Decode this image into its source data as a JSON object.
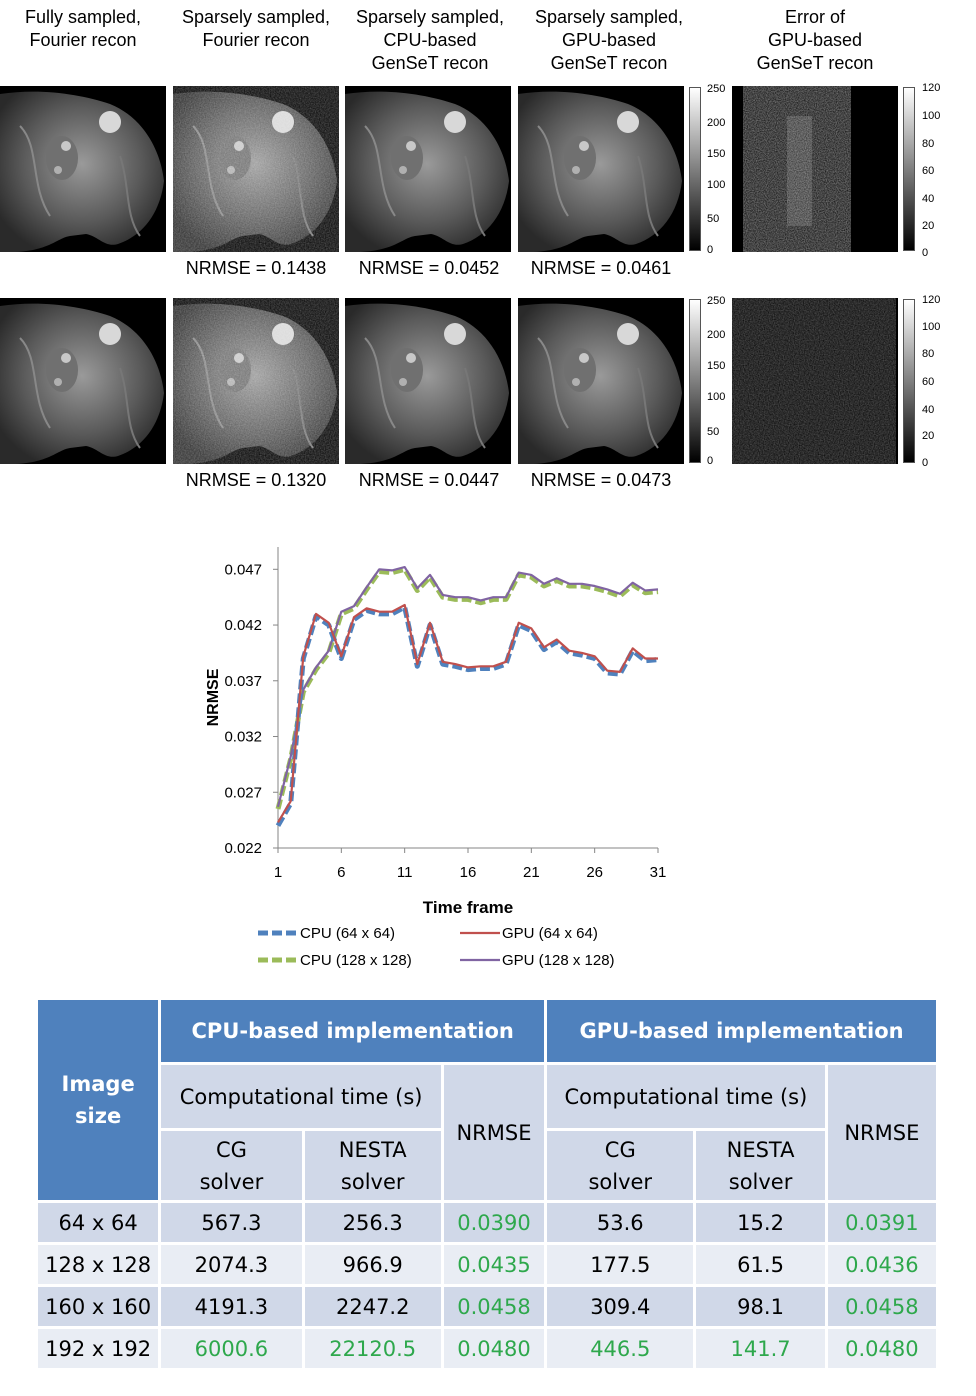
{
  "figure": {
    "column_headers": [
      "Fully sampled,\nFourier recon",
      "Sparsely sampled,\nFourier recon",
      "Sparsely sampled,\nCPU-based\nGenSeT recon",
      "Sparsely sampled,\nGPU-based\nGenSeT recon",
      "Error of\nGPU-based\nGenSeT recon"
    ],
    "row1_nrmse": [
      "NRMSE = 0.1438",
      "NRMSE = 0.0452",
      "NRMSE = 0.0461"
    ],
    "row2_nrmse": [
      "NRMSE = 0.1320",
      "NRMSE = 0.0447",
      "NRMSE = 0.0473"
    ],
    "colorbar_image_ticks": [
      "250",
      "200",
      "150",
      "100",
      "50",
      "0"
    ],
    "colorbar_error_ticks": [
      "120",
      "100",
      "80",
      "60",
      "40",
      "20",
      "0"
    ]
  },
  "chart_data": {
    "type": "line",
    "title": "",
    "xlabel": "Time frame",
    "ylabel": "NRMSE",
    "xlim": [
      1,
      31
    ],
    "ylim": [
      0.022,
      0.049
    ],
    "x_ticks": [
      "1",
      "6",
      "11",
      "16",
      "21",
      "26",
      "31"
    ],
    "y_ticks": [
      "0.022",
      "0.027",
      "0.032",
      "0.037",
      "0.042",
      "0.047"
    ],
    "legend_position": "bottom",
    "grid": false,
    "x": [
      1,
      2,
      3,
      4,
      5,
      6,
      7,
      8,
      9,
      10,
      11,
      12,
      13,
      14,
      15,
      16,
      17,
      18,
      19,
      20,
      21,
      22,
      23,
      24,
      25,
      26,
      27,
      28,
      29,
      30,
      31
    ],
    "series": [
      {
        "name": "CPU (64 x 64)",
        "color": "#4f81bd",
        "style": "dashed",
        "values": [
          0.024,
          0.026,
          0.039,
          0.0428,
          0.042,
          0.039,
          0.0425,
          0.0433,
          0.043,
          0.043,
          0.0436,
          0.0383,
          0.042,
          0.0385,
          0.0383,
          0.038,
          0.0381,
          0.0381,
          0.0385,
          0.042,
          0.0415,
          0.0398,
          0.0405,
          0.0395,
          0.0393,
          0.039,
          0.0377,
          0.0376,
          0.0397,
          0.0388,
          0.0389
        ]
      },
      {
        "name": "GPU (64 x 64)",
        "color": "#c0504d",
        "style": "solid",
        "values": [
          0.0243,
          0.0262,
          0.0392,
          0.043,
          0.0422,
          0.0392,
          0.0427,
          0.0435,
          0.0432,
          0.0432,
          0.0438,
          0.0385,
          0.0422,
          0.0387,
          0.0385,
          0.0382,
          0.0383,
          0.0383,
          0.0387,
          0.0422,
          0.0417,
          0.04,
          0.0407,
          0.0397,
          0.0395,
          0.0392,
          0.0379,
          0.0378,
          0.0399,
          0.039,
          0.039
        ]
      },
      {
        "name": "CPU (128 x 128)",
        "color": "#9bbb59",
        "style": "dashed",
        "values": [
          0.0255,
          0.03,
          0.036,
          0.038,
          0.0395,
          0.043,
          0.0435,
          0.0452,
          0.0468,
          0.0467,
          0.047,
          0.0451,
          0.0463,
          0.0445,
          0.0443,
          0.0443,
          0.044,
          0.0443,
          0.0443,
          0.0465,
          0.0463,
          0.0455,
          0.046,
          0.0455,
          0.0455,
          0.0453,
          0.045,
          0.0446,
          0.0456,
          0.0449,
          0.045
        ]
      },
      {
        "name": "GPU (128 x 128)",
        "color": "#8064a2",
        "style": "solid",
        "values": [
          0.0257,
          0.0302,
          0.0362,
          0.0382,
          0.0397,
          0.0432,
          0.0437,
          0.0454,
          0.047,
          0.0469,
          0.0472,
          0.0453,
          0.0465,
          0.0447,
          0.0445,
          0.0445,
          0.0442,
          0.0445,
          0.0445,
          0.0467,
          0.0465,
          0.0457,
          0.0462,
          0.0457,
          0.0457,
          0.0455,
          0.0452,
          0.0448,
          0.0458,
          0.0451,
          0.0452
        ]
      }
    ]
  },
  "table": {
    "image_size_header": "Image\nsize",
    "cpu_header": "CPU-based implementation",
    "gpu_header": "GPU-based implementation",
    "comp_time_header": "Computational time (s)",
    "nrmse_header": "NRMSE",
    "cg_header": "CG\nsolver",
    "nesta_header": "NESTA\nsolver",
    "highlight_color": "#2ea84c",
    "rows": [
      {
        "size": "64 x 64",
        "cpu_cg": "567.3",
        "cpu_nesta": "256.3",
        "cpu_nrmse": "0.0390",
        "gpu_cg": "53.6",
        "gpu_nesta": "15.2",
        "gpu_nrmse": "0.0391"
      },
      {
        "size": "128 x 128",
        "cpu_cg": "2074.3",
        "cpu_nesta": "966.9",
        "cpu_nrmse": "0.0435",
        "gpu_cg": "177.5",
        "gpu_nesta": "61.5",
        "gpu_nrmse": "0.0436"
      },
      {
        "size": "160 x 160",
        "cpu_cg": "4191.3",
        "cpu_nesta": "2247.2",
        "cpu_nrmse": "0.0458",
        "gpu_cg": "309.4",
        "gpu_nesta": "98.1",
        "gpu_nrmse": "0.0458"
      },
      {
        "size": "192 x 192",
        "cpu_cg": "6000.6",
        "cpu_nesta": "22120.5",
        "cpu_nrmse": "0.0480",
        "gpu_cg": "446.5",
        "gpu_nesta": "141.7",
        "gpu_nrmse": "0.0480"
      }
    ]
  }
}
